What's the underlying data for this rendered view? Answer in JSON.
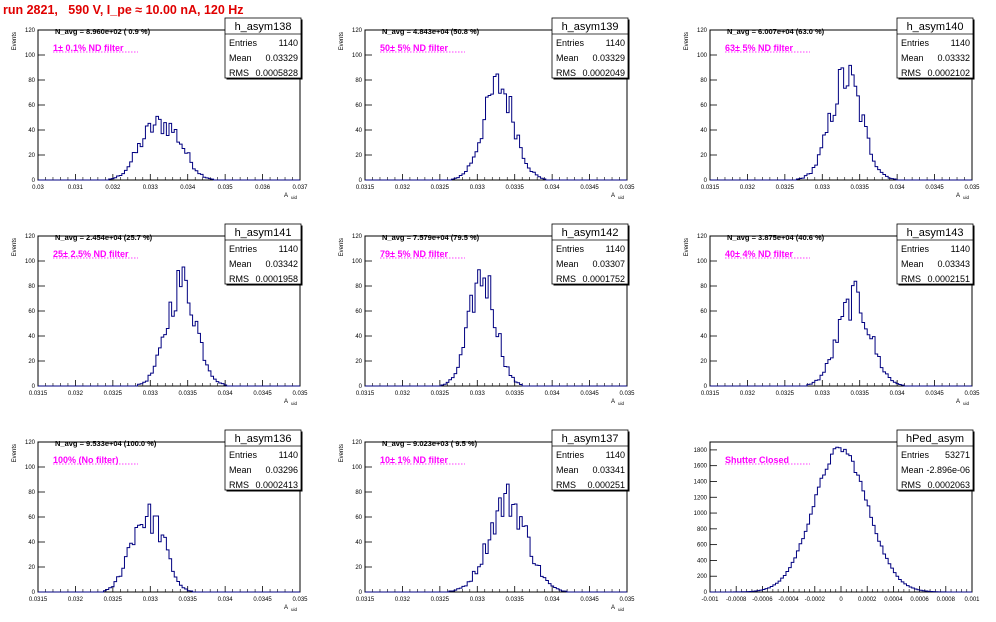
{
  "page": {
    "title": "run 2821,   590 V, I_pe ≈ 10.00 nA, 120 Hz"
  },
  "style": {
    "hist_color": "#000080",
    "annotation_color": "#ff00ff",
    "title_color": "#e00000"
  },
  "chart_data": [
    {
      "type": "histogram",
      "name": "h_asym138",
      "stats": {
        "Entries": "1140",
        "Mean": "0.03329",
        "RMS": "0.0005828"
      },
      "navg": "N_avg = 8.960e+02 ( 0.9 %)",
      "filter": "1± 0.1% ND filter",
      "xlabel": "A_uid",
      "ylabel": "Events",
      "xlim": [
        0.03,
        0.037
      ],
      "ylim": [
        0,
        120
      ],
      "xticks": [
        "0.03",
        "0.031",
        "0.032",
        "0.033",
        "0.034",
        "0.035",
        "0.036",
        "0.037"
      ],
      "yticks": [
        "0",
        "20",
        "40",
        "60",
        "80",
        "100",
        "120"
      ],
      "mean": 0.03329,
      "rms": 0.0005828,
      "peak": 57,
      "profile": "double"
    },
    {
      "type": "histogram",
      "name": "h_asym139",
      "stats": {
        "Entries": "1140",
        "Mean": "0.03329",
        "RMS": "0.0002049"
      },
      "navg": "N_avg = 4.843e+04 (50.8 %)",
      "filter": "50± 5% ND filter",
      "xlabel": "A_uid",
      "ylabel": "Events",
      "xlim": [
        0.0315,
        0.035
      ],
      "ylim": [
        0,
        120
      ],
      "xticks": [
        "0.0315",
        "0.032",
        "0.0325",
        "0.033",
        "0.0335",
        "0.034",
        "0.0345",
        "0.035"
      ],
      "yticks": [
        "0",
        "20",
        "40",
        "60",
        "80",
        "100",
        "120"
      ],
      "mean": 0.03329,
      "rms": 0.0002049,
      "peak": 82,
      "profile": "single"
    },
    {
      "type": "histogram",
      "name": "h_asym140",
      "stats": {
        "Entries": "1140",
        "Mean": "0.03332",
        "RMS": "0.0002102"
      },
      "navg": "N_avg = 6.007e+04 (63.0 %)",
      "filter": "63± 5% ND filter",
      "xlabel": "A_uid",
      "ylabel": "Events",
      "xlim": [
        0.0315,
        0.035
      ],
      "ylim": [
        0,
        120
      ],
      "xticks": [
        "0.0315",
        "0.032",
        "0.0325",
        "0.033",
        "0.0335",
        "0.034",
        "0.0345",
        "0.035"
      ],
      "yticks": [
        "0",
        "20",
        "40",
        "60",
        "80",
        "100",
        "120"
      ],
      "mean": 0.03332,
      "rms": 0.0002102,
      "peak": 89,
      "profile": "single"
    },
    {
      "type": "histogram",
      "name": "h_asym141",
      "stats": {
        "Entries": "1140",
        "Mean": "0.03342",
        "RMS": "0.0001958"
      },
      "navg": "N_avg = 2.454e+04 (25.7 %)",
      "filter": "25± 2.5% ND filter",
      "xlabel": "A_uid",
      "ylabel": "Events",
      "xlim": [
        0.0315,
        0.035
      ],
      "ylim": [
        0,
        120
      ],
      "xticks": [
        "0.0315",
        "0.032",
        "0.0325",
        "0.033",
        "0.0335",
        "0.034",
        "0.0345",
        "0.035"
      ],
      "yticks": [
        "0",
        "20",
        "40",
        "60",
        "80",
        "100",
        "120"
      ],
      "mean": 0.03342,
      "rms": 0.0001958,
      "peak": 90,
      "profile": "single"
    },
    {
      "type": "histogram",
      "name": "h_asym142",
      "stats": {
        "Entries": "1140",
        "Mean": "0.03307",
        "RMS": "0.0001752"
      },
      "navg": "N_avg = 7.579e+04 (79.5 %)",
      "filter": "79± 5% ND filter",
      "xlabel": "A_uid",
      "ylabel": "Events",
      "xlim": [
        0.0315,
        0.035
      ],
      "ylim": [
        0,
        120
      ],
      "xticks": [
        "0.0315",
        "0.032",
        "0.0325",
        "0.033",
        "0.0335",
        "0.034",
        "0.0345",
        "0.035"
      ],
      "yticks": [
        "0",
        "20",
        "40",
        "60",
        "80",
        "100",
        "120"
      ],
      "mean": 0.03307,
      "rms": 0.0001752,
      "peak": 96,
      "profile": "single"
    },
    {
      "type": "histogram",
      "name": "h_asym143",
      "stats": {
        "Entries": "1140",
        "Mean": "0.03343",
        "RMS": "0.0002151"
      },
      "navg": "N_avg = 3.875e+04 (40.6 %)",
      "filter": "40± 4% ND filter",
      "xlabel": "A_uid",
      "ylabel": "Events",
      "xlim": [
        0.0315,
        0.035
      ],
      "ylim": [
        0,
        120
      ],
      "xticks": [
        "0.0315",
        "0.032",
        "0.0325",
        "0.033",
        "0.0335",
        "0.034",
        "0.0345",
        "0.035"
      ],
      "yticks": [
        "0",
        "20",
        "40",
        "60",
        "80",
        "100",
        "120"
      ],
      "mean": 0.03343,
      "rms": 0.0002151,
      "peak": 75,
      "profile": "single"
    },
    {
      "type": "histogram",
      "name": "h_asym136",
      "stats": {
        "Entries": "1140",
        "Mean": "0.03296",
        "RMS": "0.0002413"
      },
      "navg": "N_avg = 9.533e+04 (100.0 %)",
      "filter": "100% (No filter)",
      "xlabel": "A_uid",
      "ylabel": "Events",
      "xlim": [
        0.0315,
        0.035
      ],
      "ylim": [
        0,
        120
      ],
      "xticks": [
        "0.0315",
        "0.032",
        "0.0325",
        "0.033",
        "0.0335",
        "0.034",
        "0.0345",
        "0.035"
      ],
      "yticks": [
        "0",
        "20",
        "40",
        "60",
        "80",
        "100",
        "120"
      ],
      "mean": 0.03296,
      "rms": 0.0002413,
      "peak": 76,
      "profile": "double"
    },
    {
      "type": "histogram",
      "name": "h_asym137",
      "stats": {
        "Entries": "1140",
        "Mean": "0.03341",
        "RMS": "0.000251"
      },
      "navg": "N_avg = 9.023e+03 ( 9.5 %)",
      "filter": "10± 1% ND filter",
      "xlabel": "A_uid",
      "ylabel": "Events",
      "xlim": [
        0.0315,
        0.035
      ],
      "ylim": [
        0,
        120
      ],
      "xticks": [
        "0.0315",
        "0.032",
        "0.0325",
        "0.033",
        "0.0335",
        "0.034",
        "0.0345",
        "0.035"
      ],
      "yticks": [
        "0",
        "20",
        "40",
        "60",
        "80",
        "100",
        "120"
      ],
      "mean": 0.03341,
      "rms": 0.000251,
      "peak": 80,
      "profile": "single"
    },
    {
      "type": "histogram",
      "name": "hPed_asym",
      "stats": {
        "Entries": "53271",
        "Mean": "-2.896e-06",
        "RMS": "0.0002063"
      },
      "navg": "",
      "filter": "Shutter Closed",
      "xlabel": "",
      "ylabel": "",
      "xlim": [
        -0.001,
        0.001
      ],
      "ylim": [
        0,
        1900
      ],
      "xticks": [
        "-0.001",
        "-0.0008",
        "-0.0006",
        "-0.0004",
        "-0.0002",
        "0",
        "0.0002",
        "0.0004",
        "0.0006",
        "0.0008",
        "0.001"
      ],
      "yticks": [
        "0",
        "200",
        "400",
        "600",
        "800",
        "1000",
        "1200",
        "1400",
        "1600",
        "1800"
      ],
      "mean": -2.896e-06,
      "rms": 0.0002063,
      "peak": 1830,
      "profile": "wide"
    }
  ]
}
